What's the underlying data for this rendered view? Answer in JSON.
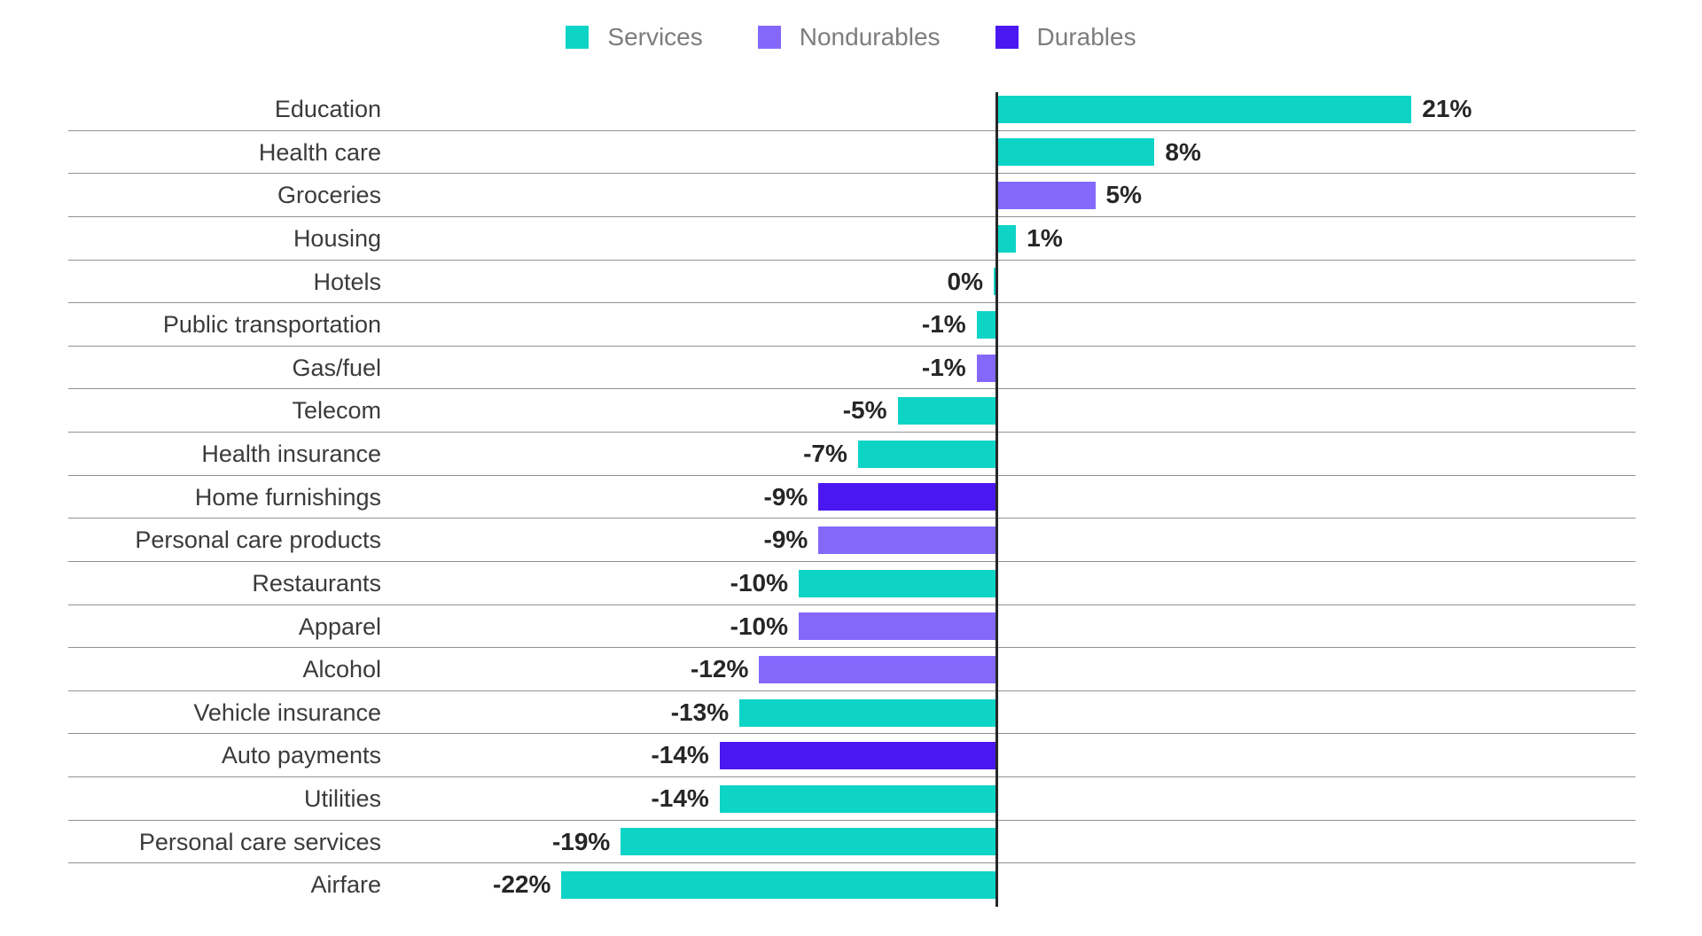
{
  "page": {
    "background": "#ffffff"
  },
  "legend": {
    "position": "top-center",
    "items": [
      {
        "key": "services",
        "label": "Services",
        "color": "#0ed4c6"
      },
      {
        "key": "nondurables",
        "label": "Nondurables",
        "color": "#8468fb"
      },
      {
        "key": "durables",
        "label": "Durables",
        "color": "#4b17f0"
      }
    ]
  },
  "chart_data": {
    "type": "bar",
    "orientation": "horizontal",
    "value_unit": "%",
    "xlim": [
      -22,
      21
    ],
    "grid": "horizontal-row-separators",
    "zero_axis": true,
    "legend_position": "top-center",
    "axis_color": "#26272b",
    "grid_color": "#919191",
    "category_label_color": "#3b3b3b",
    "value_label_color": "#262626",
    "categories": [
      "Education",
      "Health care",
      "Groceries",
      "Housing",
      "Hotels",
      "Public transportation",
      "Gas/fuel",
      "Telecom",
      "Health insurance",
      "Home furnishings",
      "Personal care products",
      "Restaurants",
      "Apparel",
      "Alcohol",
      "Vehicle insurance",
      "Auto payments",
      "Utilities",
      "Personal care services",
      "Airfare"
    ],
    "points": [
      {
        "category": "Education",
        "value": 21,
        "label": "21%",
        "series": "services"
      },
      {
        "category": "Health care",
        "value": 8,
        "label": "8%",
        "series": "services"
      },
      {
        "category": "Groceries",
        "value": 5,
        "label": "5%",
        "series": "nondurables"
      },
      {
        "category": "Housing",
        "value": 1,
        "label": "1%",
        "series": "services"
      },
      {
        "category": "Hotels",
        "value": 0,
        "label": "0%",
        "series": "services"
      },
      {
        "category": "Public transportation",
        "value": -1,
        "label": "-1%",
        "series": "services"
      },
      {
        "category": "Gas/fuel",
        "value": -1,
        "label": "-1%",
        "series": "nondurables"
      },
      {
        "category": "Telecom",
        "value": -5,
        "label": "-5%",
        "series": "services"
      },
      {
        "category": "Health insurance",
        "value": -7,
        "label": "-7%",
        "series": "services"
      },
      {
        "category": "Home furnishings",
        "value": -9,
        "label": "-9%",
        "series": "durables"
      },
      {
        "category": "Personal care products",
        "value": -9,
        "label": "-9%",
        "series": "nondurables"
      },
      {
        "category": "Restaurants",
        "value": -10,
        "label": "-10%",
        "series": "services"
      },
      {
        "category": "Apparel",
        "value": -10,
        "label": "-10%",
        "series": "nondurables"
      },
      {
        "category": "Alcohol",
        "value": -12,
        "label": "-12%",
        "series": "nondurables"
      },
      {
        "category": "Vehicle insurance",
        "value": -13,
        "label": "-13%",
        "series": "services"
      },
      {
        "category": "Auto payments",
        "value": -14,
        "label": "-14%",
        "series": "durables"
      },
      {
        "category": "Utilities",
        "value": -14,
        "label": "-14%",
        "series": "services"
      },
      {
        "category": "Personal care services",
        "value": -19,
        "label": "-19%",
        "series": "services"
      },
      {
        "category": "Airfare",
        "value": -22,
        "label": "-22%",
        "series": "services"
      }
    ]
  }
}
